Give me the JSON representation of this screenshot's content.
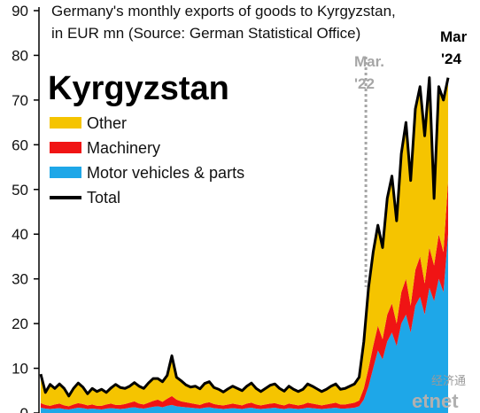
{
  "chart_data": {
    "type": "area",
    "title_lines": [
      "Germany's monthly exports of goods to Kyrgyzstan,",
      "in EUR mn (Source: German Statistical Office)"
    ],
    "heading": "Kyrgyzstan",
    "ylim": [
      0,
      90
    ],
    "yticks": [
      "0",
      "10",
      "20",
      "30",
      "40",
      "50",
      "60",
      "70",
      "80",
      "90"
    ],
    "stacked": true,
    "series": [
      {
        "name": "Motor vehicles & parts",
        "color": "#1ea7e8",
        "values": [
          1.2,
          1.0,
          0.9,
          1.0,
          1.1,
          0.9,
          0.8,
          1.0,
          1.2,
          1.1,
          0.9,
          1.0,
          0.9,
          0.8,
          1.0,
          1.1,
          1.0,
          0.9,
          1.0,
          1.2,
          1.3,
          1.1,
          1.0,
          1.2,
          1.4,
          1.5,
          1.3,
          1.6,
          1.8,
          1.5,
          1.4,
          1.3,
          1.2,
          1.1,
          1.0,
          1.2,
          1.3,
          1.1,
          1.0,
          0.9,
          1.0,
          1.1,
          1.0,
          0.9,
          1.1,
          1.2,
          1.0,
          0.9,
          1.0,
          1.1,
          1.2,
          1.0,
          0.9,
          1.1,
          1.0,
          0.9,
          1.0,
          1.2,
          1.1,
          1.0,
          0.9,
          1.0,
          1.1,
          1.2,
          1.0,
          1.0,
          1.1,
          1.2,
          1.5,
          3.0,
          6.0,
          10.0,
          14.0,
          12.0,
          16.0,
          18.0,
          15.0,
          20.0,
          22.0,
          18.0,
          24.0,
          26.0,
          22.0,
          28.0,
          25.0,
          30.0,
          27.0,
          40.0
        ]
      },
      {
        "name": "Machinery",
        "color": "#f01414",
        "values": [
          1.0,
          0.8,
          0.7,
          0.9,
          1.0,
          0.8,
          0.7,
          0.9,
          1.0,
          0.9,
          0.8,
          0.9,
          0.7,
          0.8,
          0.9,
          1.0,
          0.8,
          0.9,
          1.0,
          1.1,
          1.3,
          1.0,
          0.9,
          1.1,
          1.3,
          1.5,
          1.2,
          1.6,
          2.0,
          1.5,
          1.2,
          1.1,
          1.0,
          0.9,
          0.8,
          1.0,
          1.1,
          0.9,
          0.8,
          0.8,
          0.9,
          1.0,
          0.9,
          0.8,
          1.0,
          1.1,
          0.9,
          0.8,
          0.9,
          1.0,
          1.0,
          0.9,
          0.8,
          1.0,
          0.9,
          0.8,
          0.9,
          1.1,
          1.0,
          0.9,
          0.8,
          0.9,
          1.0,
          1.1,
          0.9,
          0.9,
          1.0,
          1.1,
          1.3,
          2.5,
          4.0,
          5.0,
          5.5,
          4.5,
          6.0,
          6.5,
          5.0,
          7.0,
          8.0,
          6.0,
          8.0,
          9.0,
          7.0,
          9.0,
          8.0,
          10.0,
          9.0,
          12.0
        ]
      },
      {
        "name": "Other",
        "color": "#f5c400",
        "values": [
          6.5,
          2.8,
          4.8,
          3.6,
          4.4,
          3.8,
          2.3,
          3.6,
          4.5,
          3.8,
          2.6,
          3.6,
          3.2,
          3.7,
          2.7,
          3.5,
          4.6,
          3.9,
          3.5,
          3.7,
          4.2,
          3.9,
          3.6,
          4.4,
          5.0,
          4.7,
          4.5,
          5.2,
          9.0,
          5.0,
          4.6,
          3.9,
          3.6,
          4.0,
          3.6,
          4.4,
          4.6,
          3.7,
          3.5,
          3.0,
          3.5,
          3.9,
          3.6,
          3.3,
          3.9,
          4.4,
          3.6,
          3.1,
          3.6,
          4.1,
          4.3,
          3.6,
          3.2,
          3.9,
          3.4,
          3.1,
          3.4,
          4.2,
          3.9,
          3.5,
          3.1,
          3.4,
          3.9,
          4.2,
          3.4,
          3.6,
          3.9,
          4.2,
          5.2,
          10.5,
          18.0,
          21.0,
          22.5,
          20.5,
          26.0,
          28.5,
          23.0,
          31.0,
          35.0,
          28.0,
          36.0,
          38.0,
          33.0,
          38.0,
          15.0,
          33.0,
          34.0,
          23.0
        ]
      }
    ],
    "total": {
      "name": "Total",
      "color": "#000000",
      "values": [
        8.7,
        4.6,
        6.4,
        5.5,
        6.5,
        5.5,
        3.8,
        5.5,
        6.7,
        5.8,
        4.3,
        5.5,
        4.8,
        5.3,
        4.6,
        5.6,
        6.4,
        5.7,
        5.5,
        6.0,
        6.8,
        6.0,
        5.5,
        6.7,
        7.7,
        7.7,
        7.0,
        8.4,
        12.8,
        8.0,
        7.2,
        6.3,
        5.8,
        6.0,
        5.4,
        6.6,
        7.0,
        5.7,
        5.3,
        4.7,
        5.4,
        6.0,
        5.5,
        5.0,
        6.0,
        6.7,
        5.5,
        4.8,
        5.5,
        6.2,
        6.5,
        5.5,
        4.9,
        6.0,
        5.3,
        4.8,
        5.3,
        6.5,
        6.0,
        5.4,
        4.8,
        5.3,
        6.0,
        6.5,
        5.3,
        5.5,
        6.0,
        6.5,
        8.0,
        16.0,
        28.0,
        36.0,
        42.0,
        37.0,
        48.0,
        53.0,
        43.0,
        58.0,
        65.0,
        52.0,
        68.0,
        73.0,
        62.0,
        75.0,
        48.0,
        73.0,
        70.0,
        75.0
      ]
    },
    "legend": [
      "Other",
      "Machinery",
      "Motor vehicles & parts",
      "Total"
    ],
    "annotations": [
      {
        "label": [
          "Mar.",
          "'22"
        ],
        "at_index": 70,
        "style": "dotted-line",
        "color": "#a6a6a6"
      },
      {
        "label": [
          "Mar",
          "'24"
        ],
        "at_index": 87,
        "color": "#000000"
      }
    ]
  },
  "watermark": {
    "cn": "经济通",
    "en": "etnet"
  }
}
